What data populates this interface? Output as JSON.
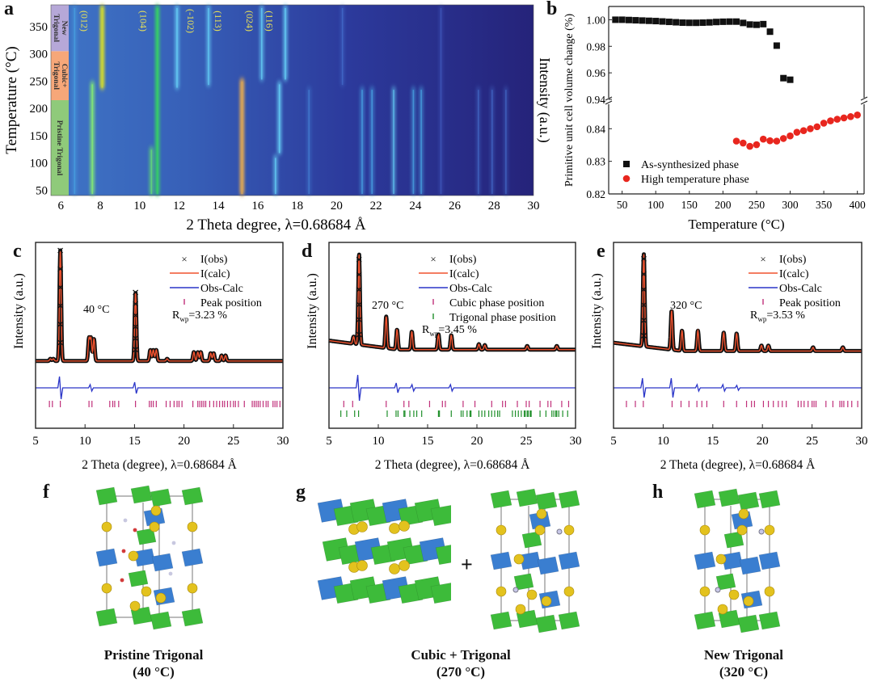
{
  "figure": {
    "panel_labels": [
      "a",
      "b",
      "c",
      "d",
      "e",
      "f",
      "g",
      "h"
    ]
  },
  "chart_data": [
    {
      "id": "a",
      "type": "heatmap",
      "title": "",
      "xlabel": "2 Theta degree, λ=0.68684 Å",
      "ylabel": "Temperature (°C)",
      "colorbar_label": "Intensity (a.u.)",
      "xlim": [
        5.5,
        30
      ],
      "ylim": [
        40,
        390
      ],
      "xticks": [
        6,
        8,
        10,
        12,
        14,
        16,
        18,
        20,
        22,
        24,
        26,
        28,
        30
      ],
      "yticks": [
        50,
        100,
        150,
        200,
        250,
        300,
        350
      ],
      "phase_bands": [
        {
          "label": "Pristine Trigonal",
          "from": 40,
          "to": 215,
          "color": "#8fca7a"
        },
        {
          "label": "Cubic+ Trigonal",
          "from": 215,
          "to": 305,
          "color": "#f6a779"
        },
        {
          "label": "New Trigonal",
          "from": 305,
          "to": 390,
          "color": "#b6a8d8"
        }
      ],
      "peak_labels": [
        {
          "text": "(012)",
          "x": 7.2
        },
        {
          "text": "(104)",
          "x": 10.2
        },
        {
          "text": "(-102)",
          "x": 12.6
        },
        {
          "text": "(113)",
          "x": 14.0
        },
        {
          "text": "(024)",
          "x": 15.6
        },
        {
          "text": "(116)",
          "x": 16.6
        }
      ],
      "peaks": [
        {
          "x": 6.7,
          "from": 40,
          "to": 390,
          "strength": 0.35,
          "color": "#4aa9e6"
        },
        {
          "x": 7.6,
          "from": 40,
          "to": 250,
          "strength": 0.8,
          "color": "#7ee07a"
        },
        {
          "x": 8.1,
          "from": 235,
          "to": 390,
          "strength": 1.0,
          "color": "#c6d23a"
        },
        {
          "x": 10.6,
          "from": 40,
          "to": 130,
          "strength": 0.7,
          "color": "#5fd37a"
        },
        {
          "x": 10.9,
          "from": 40,
          "to": 390,
          "strength": 0.9,
          "color": "#37c96b"
        },
        {
          "x": 11.9,
          "from": 235,
          "to": 390,
          "strength": 0.7,
          "color": "#63c8f2"
        },
        {
          "x": 13.5,
          "from": 240,
          "to": 390,
          "strength": 0.6,
          "color": "#63c8f2"
        },
        {
          "x": 15.2,
          "from": 40,
          "to": 255,
          "strength": 1.0,
          "color": "#d4a25a"
        },
        {
          "x": 16.2,
          "from": 250,
          "to": 390,
          "strength": 0.6,
          "color": "#63c8f2"
        },
        {
          "x": 16.9,
          "from": 40,
          "to": 115,
          "strength": 0.6,
          "color": "#63c8f2"
        },
        {
          "x": 17.1,
          "from": 115,
          "to": 250,
          "strength": 0.7,
          "color": "#63c8f2"
        },
        {
          "x": 17.4,
          "from": 250,
          "to": 390,
          "strength": 0.7,
          "color": "#63c8f2"
        },
        {
          "x": 18.6,
          "from": 40,
          "to": 240,
          "strength": 0.3,
          "color": "#4a8fe0"
        },
        {
          "x": 20.3,
          "from": 240,
          "to": 390,
          "strength": 0.3,
          "color": "#4a7ad8"
        },
        {
          "x": 21.3,
          "from": 40,
          "to": 240,
          "strength": 0.45,
          "color": "#4aa9e6"
        },
        {
          "x": 21.8,
          "from": 40,
          "to": 240,
          "strength": 0.45,
          "color": "#4aa9e6"
        },
        {
          "x": 22.9,
          "from": 40,
          "to": 240,
          "strength": 0.5,
          "color": "#63c8f2"
        },
        {
          "x": 23.9,
          "from": 40,
          "to": 240,
          "strength": 0.45,
          "color": "#4aa9e6"
        },
        {
          "x": 24.3,
          "from": 40,
          "to": 240,
          "strength": 0.45,
          "color": "#4aa9e6"
        },
        {
          "x": 25.3,
          "from": 40,
          "to": 390,
          "strength": 0.25,
          "color": "#4a6ad0"
        },
        {
          "x": 27.2,
          "from": 40,
          "to": 240,
          "strength": 0.3,
          "color": "#4a7ad8"
        },
        {
          "x": 27.9,
          "from": 40,
          "to": 240,
          "strength": 0.3,
          "color": "#4a7ad8"
        },
        {
          "x": 28.6,
          "from": 40,
          "to": 240,
          "strength": 0.3,
          "color": "#4a7ad8"
        }
      ]
    },
    {
      "id": "b",
      "type": "scatter",
      "title": "",
      "xlabel": "Temperature (°C)",
      "ylabel": "Primitive unit cell volume change (%)",
      "xlim": [
        30,
        410
      ],
      "xticks": [
        50,
        100,
        150,
        200,
        250,
        300,
        350,
        400
      ],
      "ylim_upper": [
        0.94,
        1.01
      ],
      "ylim_lower": [
        0.82,
        0.848
      ],
      "yticks_upper": [
        "1.00",
        "0.98",
        "0.96",
        "0.94"
      ],
      "yticks_lower": [
        "0.84",
        "0.83",
        "0.82"
      ],
      "axis_break": true,
      "legend_position": "bottom-left",
      "series": [
        {
          "name": "As-synthesized phase",
          "marker": "square",
          "color": "#111111",
          "x": [
            40,
            50,
            60,
            70,
            80,
            90,
            100,
            110,
            120,
            130,
            140,
            150,
            160,
            170,
            180,
            190,
            200,
            210,
            220,
            230,
            240,
            250,
            260,
            270,
            280,
            290,
            300
          ],
          "y": [
            1.0,
            1.0,
            0.9998,
            0.9996,
            0.9994,
            0.9992,
            0.999,
            0.9987,
            0.9984,
            0.9981,
            0.9978,
            0.9977,
            0.9977,
            0.9978,
            0.998,
            0.9983,
            0.9985,
            0.9986,
            0.9986,
            0.9976,
            0.9964,
            0.9962,
            0.9967,
            0.991,
            0.9805,
            0.956,
            0.9548
          ]
        },
        {
          "name": "High temperature phase",
          "marker": "circle",
          "color": "#e8261e",
          "x": [
            220,
            230,
            240,
            250,
            260,
            270,
            280,
            290,
            300,
            310,
            320,
            330,
            340,
            350,
            360,
            370,
            380,
            390,
            400
          ],
          "y": [
            0.8362,
            0.8356,
            0.8346,
            0.8351,
            0.8368,
            0.8363,
            0.8362,
            0.837,
            0.8378,
            0.8389,
            0.8394,
            0.84,
            0.8406,
            0.8417,
            0.8424,
            0.8429,
            0.8433,
            0.8437,
            0.8442
          ]
        }
      ]
    },
    {
      "id": "c",
      "type": "line",
      "xlabel": "2 Theta (degree), λ=0.68684 Å",
      "ylabel": "Intensity (a.u.)",
      "xlim": [
        5,
        30
      ],
      "xticks": [
        5,
        10,
        15,
        20,
        25,
        30
      ],
      "annotation": "40 °C",
      "rwp_prefix": "R",
      "rwp_sub": "wp",
      "rwp_value": "=3.23 %",
      "legend": [
        "I(obs)",
        "I(calc)",
        "Obs-Calc",
        "Peak position"
      ],
      "baseline": 0.06,
      "background_slope": 0.0,
      "peaks": [
        [
          6.5,
          0.02
        ],
        [
          6.8,
          0.02
        ],
        [
          7.5,
          1.0
        ],
        [
          10.4,
          0.2
        ],
        [
          10.6,
          0.2
        ],
        [
          10.9,
          0.2
        ],
        [
          15.1,
          0.62
        ],
        [
          16.6,
          0.1
        ],
        [
          16.9,
          0.1
        ],
        [
          17.2,
          0.1
        ],
        [
          18.3,
          0.02
        ],
        [
          21.0,
          0.08
        ],
        [
          21.4,
          0.08
        ],
        [
          21.7,
          0.08
        ],
        [
          22.7,
          0.07
        ],
        [
          23.0,
          0.07
        ],
        [
          23.8,
          0.05
        ],
        [
          24.2,
          0.05
        ]
      ],
      "diff_spikes": [
        [
          7.5,
          0.07
        ],
        [
          10.6,
          0.02
        ],
        [
          15.1,
          0.035
        ]
      ],
      "tick_rows": [
        {
          "color": "#c0307a",
          "positions": [
            6.4,
            6.7,
            7.5,
            10.4,
            10.7,
            12.5,
            12.8,
            13.0,
            13.4,
            15.1,
            16.5,
            16.7,
            16.9,
            17.2,
            18.2,
            18.6,
            19.0,
            19.3,
            19.5,
            19.8,
            20.9,
            21.4,
            21.6,
            21.8,
            22.0,
            22.2,
            22.6,
            23.0,
            23.3,
            23.6,
            23.9,
            24.1,
            24.4,
            24.7,
            25.0,
            25.2,
            25.5,
            26.1,
            26.9,
            27.1,
            27.3,
            27.5,
            27.7,
            28.0,
            28.3,
            28.5,
            29.0,
            29.2,
            29.4,
            29.7
          ]
        }
      ]
    },
    {
      "id": "d",
      "type": "line",
      "xlabel": "2 Theta (degree), λ=0.68684 Å",
      "ylabel": "Intensity (a.u.)",
      "xlim": [
        5,
        30
      ],
      "xticks": [
        5,
        10,
        15,
        20,
        25,
        30
      ],
      "annotation": "270 °C",
      "rwp_prefix": "R",
      "rwp_sub": "wp",
      "rwp_value": "=3.45 %",
      "legend": [
        "I(obs)",
        "I(calc)",
        "Obs-Calc",
        "Cubic phase position",
        "Trigonal phase position"
      ],
      "baseline": 0.2,
      "background_slope": 0.1,
      "peaks": [
        [
          7.5,
          0.08
        ],
        [
          8.05,
          1.0
        ],
        [
          10.8,
          0.35
        ],
        [
          11.9,
          0.22
        ],
        [
          13.4,
          0.2
        ],
        [
          16.1,
          0.17
        ],
        [
          17.4,
          0.16
        ],
        [
          20.2,
          0.06
        ],
        [
          20.8,
          0.05
        ],
        [
          25.1,
          0.04
        ],
        [
          28.1,
          0.04
        ]
      ],
      "diff_spikes": [
        [
          8.0,
          0.08
        ],
        [
          11.9,
          0.03
        ],
        [
          13.5,
          0.02
        ],
        [
          17.4,
          0.02
        ]
      ],
      "tick_rows": [
        {
          "color": "#c0307a",
          "positions": [
            6.5,
            7.4,
            10.8,
            12.6,
            13.1,
            15.2,
            16.5,
            16.8,
            18.6,
            19.8,
            21.5,
            22.6,
            22.9,
            24.1,
            25.0,
            25.3,
            26.4,
            27.2,
            27.5,
            28.6,
            29.3
          ]
        },
        {
          "color": "#1f8f2a",
          "positions": [
            6.2,
            6.8,
            7.6,
            8.0,
            10.9,
            11.8,
            12.0,
            12.6,
            12.7,
            13.2,
            13.6,
            13.9,
            14.4,
            16.1,
            16.2,
            17.4,
            18.4,
            18.6,
            19.0,
            19.3,
            19.4,
            20.2,
            20.5,
            20.8,
            21.2,
            21.5,
            21.8,
            22.1,
            22.3,
            23.6,
            23.9,
            24.2,
            24.5,
            24.8,
            24.9,
            25.1,
            25.2,
            25.4,
            25.5,
            26.4,
            27.0,
            27.6,
            27.8,
            28.0,
            28.1,
            28.3,
            28.7,
            29.2
          ]
        }
      ]
    },
    {
      "id": "e",
      "type": "line",
      "xlabel": "2 Theta (degree), λ=0.68684 Å",
      "ylabel": "Intensity (a.u.)",
      "xlim": [
        5,
        30
      ],
      "xticks": [
        5,
        10,
        15,
        20,
        25,
        30
      ],
      "annotation": "320 °C",
      "rwp_prefix": "R",
      "rwp_sub": "wp",
      "rwp_value": "=3.53 %",
      "legend": [
        "I(obs)",
        "I(calc)",
        "Obs-Calc",
        "Peak position"
      ],
      "baseline": 0.18,
      "background_slope": 0.09,
      "peaks": [
        [
          8.05,
          1.0
        ],
        [
          10.85,
          0.42
        ],
        [
          11.9,
          0.22
        ],
        [
          13.5,
          0.22
        ],
        [
          16.1,
          0.2
        ],
        [
          17.4,
          0.19
        ],
        [
          19.9,
          0.06
        ],
        [
          20.6,
          0.06
        ],
        [
          25.1,
          0.04
        ],
        [
          28.1,
          0.04
        ]
      ],
      "diff_spikes": [
        [
          8.0,
          0.06
        ],
        [
          10.9,
          0.06
        ],
        [
          13.5,
          0.02
        ],
        [
          16.1,
          0.02
        ],
        [
          17.5,
          0.015
        ]
      ],
      "tick_rows": [
        {
          "color": "#c0307a",
          "positions": [
            6.3,
            7.2,
            8.0,
            10.9,
            11.8,
            12.6,
            13.4,
            13.9,
            14.4,
            16.1,
            17.4,
            18.4,
            18.9,
            19.2,
            20.1,
            20.6,
            21.1,
            21.6,
            22.0,
            22.4,
            23.6,
            23.9,
            24.2,
            24.6,
            25.0,
            25.2,
            25.4,
            26.4,
            27.1,
            27.8,
            28.0,
            28.2,
            28.6,
            29.0,
            29.6
          ]
        }
      ]
    }
  ],
  "structures": {
    "f": {
      "caption_line1": "Pristine Trigonal",
      "caption_line2": "(40 °C)"
    },
    "g": {
      "caption_line1": "Cubic + Trigonal",
      "caption_line2": "(270 °C)",
      "plus": "+"
    },
    "h": {
      "caption_line1": "New Trigonal",
      "caption_line2": "(320 °C)"
    }
  },
  "colors": {
    "obs": "#111111",
    "calc": "#f0522e",
    "diff": "#2a35c8",
    "octa_green": "#3dbb3a",
    "octa_blue": "#3a7ed0",
    "atom_yellow": "#e3c21e"
  }
}
